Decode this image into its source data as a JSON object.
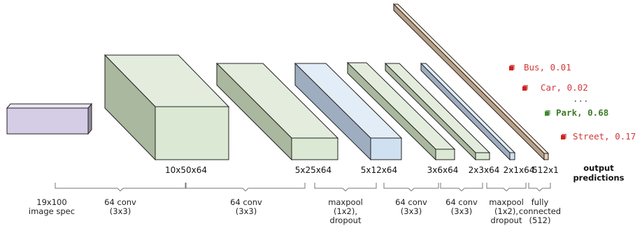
{
  "input": {
    "label": "19x100\nimage spec"
  },
  "layers": [
    {
      "dim": "10x50x64",
      "op": "64 conv\n(3x3)"
    },
    {
      "dim": "5x25x64",
      "op": "64 conv\n(3x3)"
    },
    {
      "dim": "5x12x64",
      "op": "maxpool\n(1x2),\ndropout"
    },
    {
      "dim": "3x6x64",
      "op": "64 conv\n(3x3)"
    },
    {
      "dim": "2x3x64",
      "op": "64 conv\n(3x3)"
    },
    {
      "dim": "2x1x64",
      "op": "maxpool\n(1x2),\ndropout"
    },
    {
      "dim": "512x1",
      "op": "fully\nconnected\n(512)"
    }
  ],
  "output_heading": "output\npredictions",
  "predictions": [
    {
      "label": "Bus, 0.01",
      "color": "#d0393b",
      "bold": false
    },
    {
      "label": "Car, 0.02",
      "color": "#d0393b",
      "bold": false
    },
    {
      "label": "...",
      "color": "#555555",
      "bold": false
    },
    {
      "label": "Park, 0.68",
      "color": "#3f7a2b",
      "bold": true
    },
    {
      "label": "Street, 0.17",
      "color": "#d0393b",
      "bold": false
    }
  ],
  "colors": {
    "input_block": "#d5cde6",
    "green_front": "#dbe8d3",
    "green_side": "#a9b89e",
    "blue_front": "#cfe0f0",
    "blue_side": "#9eadbf",
    "fc_block": "#e8cdb5",
    "pred_red": "#cc2222",
    "pred_green": "#3f8a2e"
  }
}
